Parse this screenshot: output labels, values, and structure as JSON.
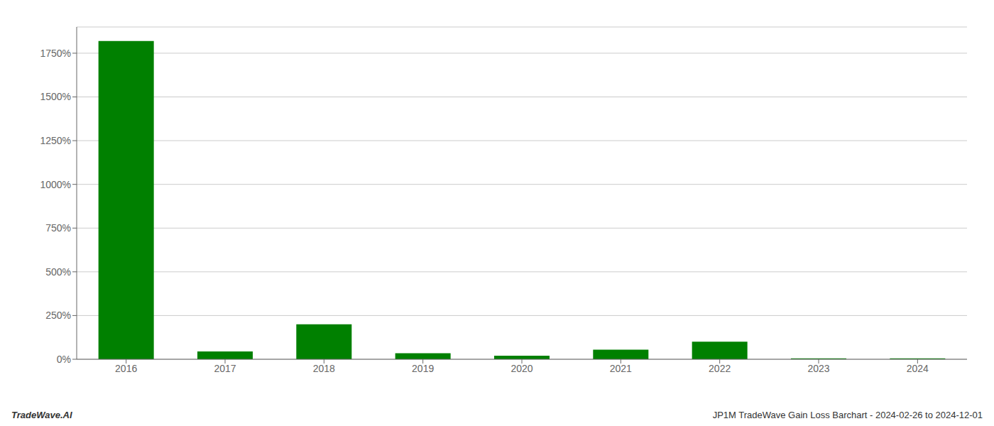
{
  "chart_data": {
    "type": "bar",
    "categories": [
      "2016",
      "2017",
      "2018",
      "2019",
      "2020",
      "2021",
      "2022",
      "2023",
      "2024"
    ],
    "values": [
      1820,
      45,
      200,
      35,
      20,
      55,
      100,
      5,
      5
    ],
    "color": "#008000",
    "ylim": [
      0,
      1900
    ],
    "yticks": [
      {
        "value": 0,
        "label": "0%"
      },
      {
        "value": 250,
        "label": "250%"
      },
      {
        "value": 500,
        "label": "500%"
      },
      {
        "value": 750,
        "label": "750%"
      },
      {
        "value": 1000,
        "label": "1000%"
      },
      {
        "value": 1250,
        "label": "1250%"
      },
      {
        "value": 1500,
        "label": "1500%"
      },
      {
        "value": 1750,
        "label": "1750%"
      }
    ],
    "grid": true,
    "annotations": [
      "TradeWave.AI",
      "JP1M TradeWave Gain Loss Barchart - 2024-02-26 to 2024-12-01"
    ]
  }
}
